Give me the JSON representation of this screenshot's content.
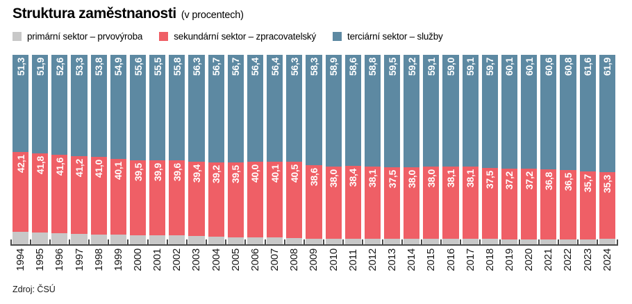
{
  "header": {
    "title": "Struktura zaměstnanosti",
    "subtitle": "(v procentech)"
  },
  "source": "Zdroj: ČSÚ",
  "legend": [
    {
      "label": "primární sektor – prvovýroba",
      "color": "#c8c8c8"
    },
    {
      "label": "sekundární sektor – zpracovatelský",
      "color": "#ef5f66"
    },
    {
      "label": "terciární sektor – služby",
      "color": "#5d89a2"
    }
  ],
  "colors": {
    "primary": "#c8c8c8",
    "secondary": "#ef5f66",
    "tertiary": "#5d89a2",
    "axis": "#4a4a4a",
    "value_label": "#ffffff"
  },
  "chart_data": {
    "type": "bar",
    "stacked": true,
    "percent_total": 100,
    "title": "Struktura zaměstnanosti (v procentech)",
    "legend_position": "top",
    "grid": false,
    "ylim": [
      0,
      100
    ],
    "decimal_separator": ",",
    "categories": [
      1994,
      1995,
      1996,
      1997,
      1998,
      1999,
      2000,
      2001,
      2002,
      2003,
      2004,
      2005,
      2006,
      2007,
      2008,
      2009,
      2010,
      2011,
      2012,
      2013,
      2014,
      2015,
      2016,
      2017,
      2018,
      2019,
      2020,
      2021,
      2022,
      2023,
      2024
    ],
    "series": [
      {
        "name": "primární sektor – prvovýroba",
        "color": "#c8c8c8",
        "labels_shown": false,
        "values": [
          6.6,
          6.3,
          5.8,
          5.5,
          5.2,
          5.0,
          4.9,
          4.6,
          4.6,
          4.3,
          4.1,
          3.8,
          3.6,
          3.5,
          3.2,
          3.1,
          3.1,
          3.0,
          3.1,
          3.0,
          2.8,
          2.9,
          2.9,
          2.8,
          2.8,
          2.7,
          2.7,
          2.6,
          2.7,
          2.7,
          2.8
        ]
      },
      {
        "name": "sekundární sektor – zpracovatelský",
        "color": "#ef5f66",
        "labels_shown": true,
        "values": [
          42.1,
          41.8,
          41.6,
          41.2,
          41.0,
          40.1,
          39.5,
          39.9,
          39.6,
          39.4,
          39.2,
          39.5,
          40.0,
          40.1,
          40.5,
          38.6,
          38.0,
          38.4,
          38.1,
          37.5,
          38.0,
          38.0,
          38.1,
          38.1,
          37.5,
          37.2,
          37.2,
          36.8,
          36.5,
          35.7,
          35.3
        ]
      },
      {
        "name": "terciární sektor – služby",
        "color": "#5d89a2",
        "labels_shown": true,
        "values": [
          51.3,
          51.9,
          52.6,
          53.3,
          53.8,
          54.9,
          55.6,
          55.5,
          55.8,
          56.3,
          56.7,
          56.7,
          56.4,
          56.4,
          56.3,
          58.3,
          58.9,
          58.6,
          58.8,
          59.5,
          59.2,
          59.1,
          59.0,
          59.1,
          59.7,
          60.1,
          60.1,
          60.6,
          60.8,
          61.6,
          61.9
        ]
      }
    ]
  }
}
